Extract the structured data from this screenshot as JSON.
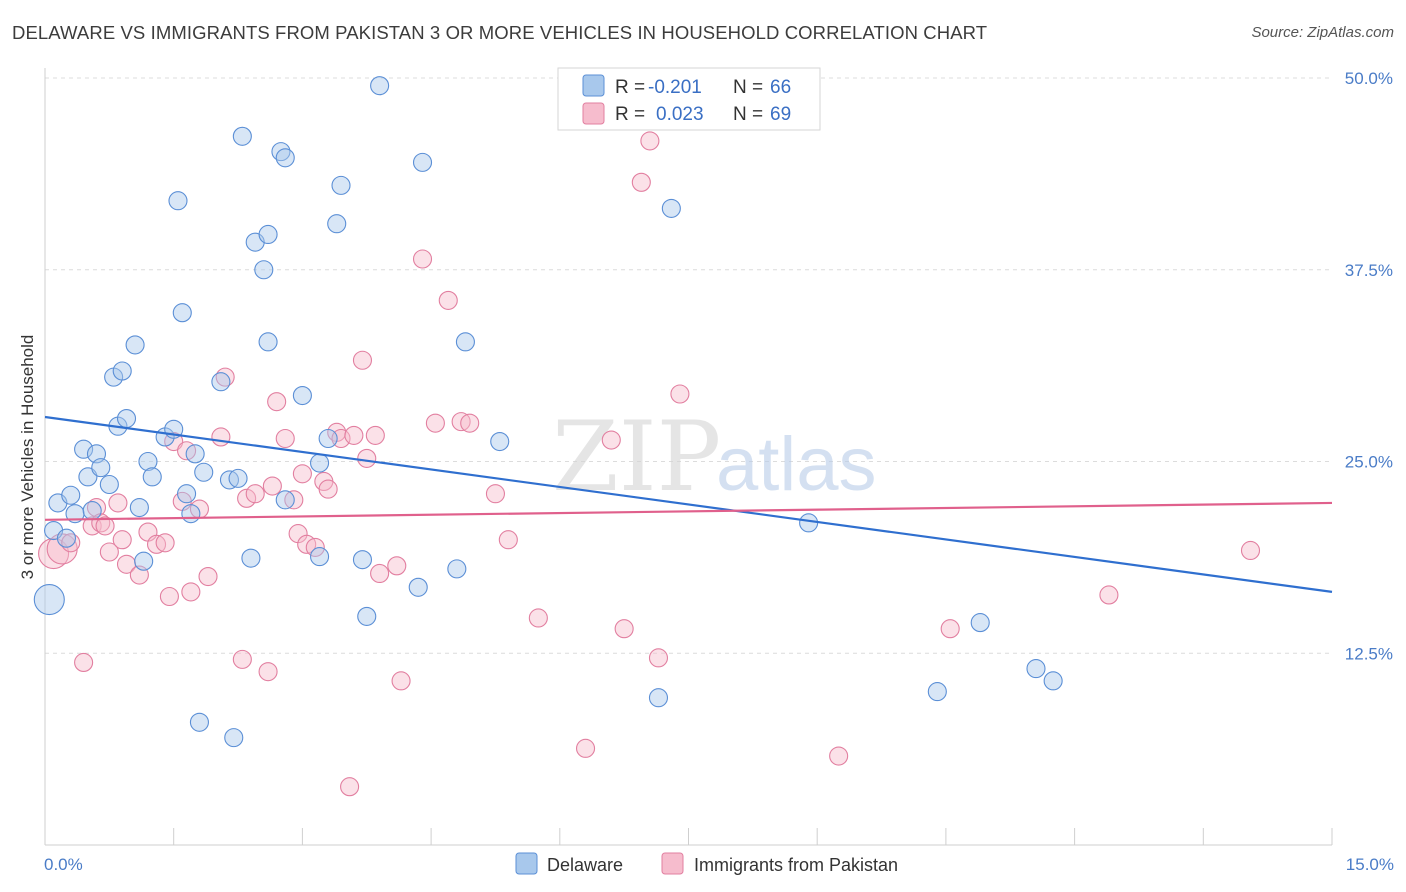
{
  "title": "DELAWARE VS IMMIGRANTS FROM PAKISTAN 3 OR MORE VEHICLES IN HOUSEHOLD CORRELATION CHART",
  "source": "Source: ZipAtlas.com",
  "watermark": {
    "zip": "ZIP",
    "atlas": "atlas"
  },
  "legend": {
    "r_label": "R =",
    "n_label": "N =",
    "rows": [
      {
        "r": "-0.201",
        "n": "66"
      },
      {
        "r": "0.023",
        "n": "69"
      }
    ]
  },
  "colors": {
    "delaware_fill": "#a8c8ec",
    "delaware_stroke": "#5b8fd6",
    "delaware_line": "#2f6fcf",
    "pakistan_fill": "#f6bccd",
    "pakistan_stroke": "#e27fa0",
    "pakistan_line": "#e0608c"
  },
  "chart_data": {
    "type": "scatter",
    "title": "DELAWARE VS IMMIGRANTS FROM PAKISTAN 3 OR MORE VEHICLES IN HOUSEHOLD CORRELATION CHART",
    "xlabel": "",
    "ylabel": "3 or more Vehicles in Household",
    "xlim": [
      0,
      15
    ],
    "ylim": [
      0,
      50
    ],
    "x_tick_labels": [
      "0.0%",
      "15.0%"
    ],
    "y_ticks": [
      12.5,
      25.0,
      37.5,
      50.0
    ],
    "y_tick_labels": [
      "12.5%",
      "25.0%",
      "37.5%",
      "50.0%"
    ],
    "grid": true,
    "legend_position": "top-center",
    "series": [
      {
        "name": "Delaware",
        "trend": {
          "x": [
            0,
            15
          ],
          "y": [
            27.9,
            16.5
          ]
        },
        "points": [
          [
            0.05,
            16.0,
            "l"
          ],
          [
            0.1,
            20.5
          ],
          [
            0.15,
            22.3
          ],
          [
            0.25,
            20.0
          ],
          [
            0.3,
            22.8
          ],
          [
            0.35,
            21.6
          ],
          [
            0.45,
            25.8
          ],
          [
            0.5,
            24.0
          ],
          [
            0.55,
            21.8
          ],
          [
            0.6,
            25.5
          ],
          [
            0.65,
            24.6
          ],
          [
            0.75,
            23.5
          ],
          [
            0.85,
            27.3
          ],
          [
            0.95,
            27.8
          ],
          [
            1.05,
            32.6
          ],
          [
            0.8,
            30.5
          ],
          [
            0.9,
            30.9
          ],
          [
            1.1,
            22.0
          ],
          [
            1.15,
            18.5
          ],
          [
            1.2,
            25.0
          ],
          [
            1.25,
            24.0
          ],
          [
            1.4,
            26.6
          ],
          [
            1.5,
            27.1
          ],
          [
            1.55,
            42.0
          ],
          [
            1.6,
            34.7
          ],
          [
            1.65,
            22.9
          ],
          [
            1.7,
            21.6
          ],
          [
            1.75,
            25.5
          ],
          [
            1.85,
            24.3
          ],
          [
            1.8,
            8.0
          ],
          [
            2.05,
            30.2
          ],
          [
            2.15,
            23.8
          ],
          [
            2.2,
            7.0
          ],
          [
            2.25,
            23.9
          ],
          [
            2.3,
            46.2
          ],
          [
            2.4,
            18.7
          ],
          [
            2.45,
            39.3
          ],
          [
            2.55,
            37.5
          ],
          [
            2.6,
            39.8
          ],
          [
            2.6,
            32.8
          ],
          [
            2.75,
            45.2
          ],
          [
            2.8,
            44.8
          ],
          [
            2.8,
            22.5
          ],
          [
            3.0,
            29.3
          ],
          [
            3.2,
            24.9
          ],
          [
            3.2,
            18.8
          ],
          [
            3.3,
            26.5
          ],
          [
            3.4,
            40.5
          ],
          [
            3.45,
            43.0
          ],
          [
            3.7,
            18.6
          ],
          [
            3.75,
            14.9
          ],
          [
            3.9,
            49.5
          ],
          [
            4.35,
            16.8
          ],
          [
            4.4,
            44.5
          ],
          [
            4.8,
            18.0
          ],
          [
            4.9,
            32.8
          ],
          [
            5.3,
            26.3
          ],
          [
            7.3,
            41.5
          ],
          [
            7.15,
            9.6
          ],
          [
            8.9,
            21.0
          ],
          [
            10.4,
            10.0
          ],
          [
            10.9,
            14.5
          ],
          [
            11.55,
            11.5
          ],
          [
            11.75,
            10.7
          ]
        ]
      },
      {
        "name": "Immigrants from Pakistan",
        "trend": {
          "x": [
            0,
            15
          ],
          "y": [
            21.2,
            22.3
          ]
        },
        "points": [
          [
            0.1,
            19.0,
            "l"
          ],
          [
            0.2,
            19.3,
            "l"
          ],
          [
            0.3,
            19.7
          ],
          [
            0.45,
            11.9
          ],
          [
            0.55,
            20.8
          ],
          [
            0.6,
            22.0
          ],
          [
            0.65,
            21.0
          ],
          [
            0.7,
            20.8
          ],
          [
            0.75,
            19.1
          ],
          [
            0.85,
            22.3
          ],
          [
            0.9,
            19.9
          ],
          [
            0.95,
            18.3
          ],
          [
            1.1,
            17.6
          ],
          [
            1.2,
            20.4
          ],
          [
            1.3,
            19.6
          ],
          [
            1.4,
            19.7
          ],
          [
            1.45,
            16.2
          ],
          [
            1.5,
            26.3
          ],
          [
            1.6,
            22.4
          ],
          [
            1.65,
            25.7
          ],
          [
            1.7,
            16.5
          ],
          [
            1.8,
            21.9
          ],
          [
            1.9,
            17.5
          ],
          [
            2.05,
            26.6
          ],
          [
            2.1,
            30.5
          ],
          [
            2.3,
            12.1
          ],
          [
            2.35,
            22.6
          ],
          [
            2.45,
            22.9
          ],
          [
            2.6,
            11.3
          ],
          [
            2.65,
            23.4
          ],
          [
            2.7,
            28.9
          ],
          [
            2.8,
            26.5
          ],
          [
            2.9,
            22.5
          ],
          [
            2.95,
            20.3
          ],
          [
            3.0,
            24.2
          ],
          [
            3.05,
            19.6
          ],
          [
            3.15,
            19.4
          ],
          [
            3.25,
            23.7
          ],
          [
            3.3,
            23.2
          ],
          [
            3.4,
            26.9
          ],
          [
            3.45,
            26.5
          ],
          [
            3.55,
            3.8
          ],
          [
            3.6,
            26.7
          ],
          [
            3.7,
            31.6
          ],
          [
            3.75,
            25.2
          ],
          [
            3.85,
            26.7
          ],
          [
            3.9,
            17.7
          ],
          [
            4.1,
            18.2
          ],
          [
            4.15,
            10.7
          ],
          [
            4.4,
            38.2
          ],
          [
            4.55,
            27.5
          ],
          [
            4.7,
            35.5
          ],
          [
            4.85,
            27.6
          ],
          [
            4.95,
            27.5
          ],
          [
            5.25,
            22.9
          ],
          [
            5.4,
            19.9
          ],
          [
            5.75,
            14.8
          ],
          [
            6.3,
            6.3
          ],
          [
            6.6,
            26.4
          ],
          [
            6.75,
            14.1
          ],
          [
            7.05,
            45.9
          ],
          [
            7.15,
            12.2
          ],
          [
            7.4,
            29.4
          ],
          [
            6.95,
            43.2
          ],
          [
            9.25,
            5.8
          ],
          [
            10.55,
            14.1
          ],
          [
            12.4,
            16.3
          ],
          [
            14.05,
            19.2
          ]
        ]
      }
    ]
  },
  "bottom_legend": [
    "Delaware",
    "Immigrants from Pakistan"
  ]
}
